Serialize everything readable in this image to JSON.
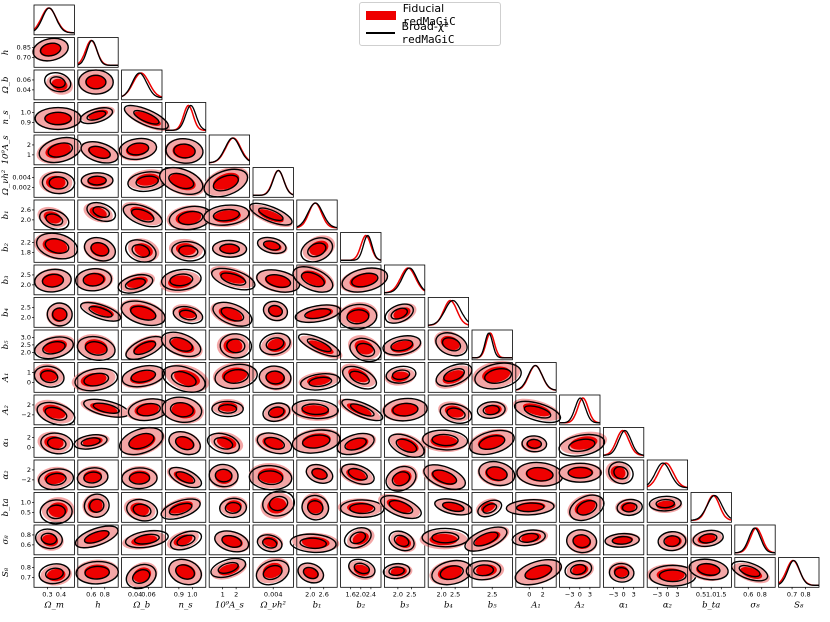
{
  "legend": {
    "fiducial_prefix": "Fiducial ",
    "fiducial_code": "redMaGiC",
    "broad_prefix": "Broad-χ² ",
    "broad_code": "redMaGiC"
  },
  "colors": {
    "fiducial": "#ee0000",
    "fiducial_light": "#f4a6a6",
    "broad": "#000000"
  },
  "chart_data": {
    "type": "corner",
    "series": [
      {
        "name": "Fiducial redMaGiC",
        "style": "filled contours"
      },
      {
        "name": "Broad-χ² redMaGiC",
        "style": "line contours"
      }
    ],
    "parameters": [
      {
        "key": "Omega_m",
        "label": "Ω_m",
        "ticks": [
          "0.3",
          "0.4"
        ]
      },
      {
        "key": "h",
        "label": "h",
        "ticks": [
          "0.6",
          "0.8"
        ],
        "y_ticks": [
          "0.85",
          "0.70"
        ]
      },
      {
        "key": "Omega_b",
        "label": "Ω_b",
        "ticks": [
          "0.04",
          "0.06"
        ],
        "y_ticks": [
          "0.06",
          "0.04"
        ]
      },
      {
        "key": "n_s",
        "label": "n_s",
        "ticks": [
          "0.9",
          "1.0"
        ],
        "y_ticks": [
          "1.0",
          "0.9"
        ]
      },
      {
        "key": "A_s",
        "label": "10⁹A_s",
        "ticks": [
          "1",
          "2"
        ],
        "y_ticks": [
          "2",
          "1"
        ]
      },
      {
        "key": "Omega_nu_h2",
        "label": "Ω_νh²",
        "ticks": [
          "0.004"
        ],
        "y_ticks": [
          "0.004",
          "0.002"
        ]
      },
      {
        "key": "b1",
        "label": "b₁",
        "ticks": [
          "2.0",
          "2.6"
        ],
        "y_ticks": [
          "2.6",
          "2.0"
        ]
      },
      {
        "key": "b2",
        "label": "b₂",
        "ticks": [
          "1.6",
          "2.0",
          "2.4"
        ],
        "y_ticks": [
          "2.2",
          "1.8"
        ]
      },
      {
        "key": "b3",
        "label": "b₃",
        "ticks": [
          "2.0",
          "2.5"
        ],
        "y_ticks": [
          "2.5",
          "2.0"
        ]
      },
      {
        "key": "b4",
        "label": "b₄",
        "ticks": [
          "2.0",
          "2.5"
        ],
        "y_ticks": [
          "2.5",
          "2.0"
        ]
      },
      {
        "key": "b5",
        "label": "b₅",
        "ticks": [
          "2.5"
        ],
        "y_ticks": [
          "3.0",
          "2.5",
          "2.0"
        ]
      },
      {
        "key": "A1",
        "label": "A₁",
        "ticks": [
          "0",
          "2"
        ],
        "y_ticks": [
          "1",
          "0"
        ]
      },
      {
        "key": "A2",
        "label": "A₂",
        "ticks": [
          "−3",
          "0",
          "3"
        ],
        "y_ticks": [
          "2",
          "−2"
        ]
      },
      {
        "key": "alpha1",
        "label": "α₁",
        "ticks": [
          "−3",
          "0",
          "3"
        ],
        "y_ticks": [
          "2",
          "0"
        ]
      },
      {
        "key": "alpha2",
        "label": "α₂",
        "ticks": [
          "−3",
          "0",
          "3"
        ],
        "y_ticks": [
          "2",
          "−2"
        ]
      },
      {
        "key": "b_ta",
        "label": "b_ta",
        "ticks": [
          "0.5",
          "1.0",
          "1.5"
        ],
        "y_ticks": [
          "1.0",
          "0.5"
        ]
      },
      {
        "key": "sigma8",
        "label": "σ₈",
        "ticks": [
          "0.6",
          "0.8"
        ],
        "y_ticks": [
          "0.8",
          "0.6"
        ]
      },
      {
        "key": "S8",
        "label": "S₈",
        "ticks": [
          "0.7",
          "0.8"
        ],
        "y_ticks": [
          "0.8",
          "0.7"
        ]
      }
    ],
    "contour_levels": [
      "68%",
      "95%"
    ],
    "grid": false
  }
}
